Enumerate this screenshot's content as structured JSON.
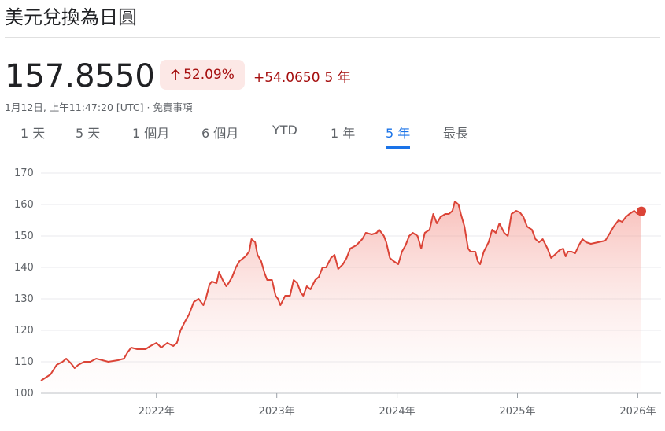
{
  "header": {
    "title": "美元兌換為日圓",
    "price": "157.8550",
    "percent_change": "52.09%",
    "change": "+54.0650",
    "period": "5 年",
    "timestamp": "1月12日, 上午11:47:20 [UTC]",
    "separator": "·",
    "disclaimer": "免責事項"
  },
  "tabs": {
    "items": [
      "1 天",
      "5 天",
      "1 個月",
      "6 個月",
      "YTD",
      "1 年",
      "5 年",
      "最長"
    ],
    "active": 6
  },
  "chart_data": {
    "type": "line",
    "color": "#db4437",
    "grid": true,
    "area": true,
    "x": [
      2021.04,
      2021.08,
      2021.12,
      2021.17,
      2021.22,
      2021.25,
      2021.29,
      2021.32,
      2021.35,
      2021.4,
      2021.45,
      2021.5,
      2021.55,
      2021.6,
      2021.68,
      2021.73,
      2021.76,
      2021.79,
      2021.84,
      2021.91,
      2021.95,
      2022.0,
      2022.04,
      2022.09,
      2022.14,
      2022.17,
      2022.2,
      2022.24,
      2022.27,
      2022.31,
      2022.35,
      2022.39,
      2022.41,
      2022.44,
      2022.46,
      2022.5,
      2022.52,
      2022.55,
      2022.58,
      2022.6,
      2022.63,
      2022.66,
      2022.69,
      2022.74,
      2022.77,
      2022.79,
      2022.82,
      2022.84,
      2022.87,
      2022.9,
      2022.92,
      2022.96,
      2022.99,
      2023.01,
      2023.03,
      2023.07,
      2023.11,
      2023.14,
      2023.17,
      2023.2,
      2023.22,
      2023.25,
      2023.28,
      2023.32,
      2023.35,
      2023.38,
      2023.41,
      2023.45,
      2023.48,
      2023.51,
      2023.55,
      2023.58,
      2023.61,
      2023.66,
      2023.71,
      2023.74,
      2023.79,
      2023.83,
      2023.85,
      2023.89,
      2023.91,
      2023.94,
      2023.97,
      2024.01,
      2024.04,
      2024.07,
      2024.1,
      2024.13,
      2024.17,
      2024.2,
      2024.23,
      2024.27,
      2024.3,
      2024.33,
      2024.36,
      2024.4,
      2024.43,
      2024.46,
      2024.48,
      2024.51,
      2024.53,
      2024.56,
      2024.59,
      2024.61,
      2024.65,
      2024.67,
      2024.69,
      2024.72,
      2024.76,
      2024.79,
      2024.82,
      2024.85,
      2024.89,
      2024.92,
      2024.95,
      2024.99,
      2025.02,
      2025.05,
      2025.08,
      2025.12,
      2025.15,
      2025.18,
      2025.21,
      2025.25,
      2025.28,
      2025.31,
      2025.35,
      2025.38,
      2025.4,
      2025.42,
      2025.45,
      2025.48,
      2025.51,
      2025.54,
      2025.57,
      2025.61,
      2025.67,
      2025.73,
      2025.77,
      2025.8,
      2025.84,
      2025.87,
      2025.9,
      2025.93,
      2025.97,
      2026.0,
      2026.03
    ],
    "values": [
      104,
      105,
      106,
      109,
      110,
      111,
      109.5,
      108,
      109,
      110,
      110,
      111,
      110.5,
      110,
      110.5,
      111,
      113,
      114.5,
      114,
      114,
      115,
      116,
      114.5,
      116,
      115,
      116,
      120,
      123,
      125,
      129,
      130,
      128,
      130,
      134.5,
      135.5,
      135,
      138.5,
      136,
      134,
      135,
      137,
      140,
      142,
      143.5,
      145,
      149,
      148,
      144,
      142,
      138,
      136,
      136,
      131,
      130,
      128,
      131,
      131,
      136,
      135,
      132,
      131,
      134,
      133,
      136,
      137,
      140,
      140,
      143,
      144,
      139.5,
      141,
      143,
      146,
      147,
      149,
      151,
      150.5,
      151,
      152,
      150,
      148,
      143,
      142,
      141,
      145,
      147,
      150,
      151,
      150,
      146,
      151,
      152,
      157,
      154,
      156,
      157,
      157,
      158,
      161,
      160,
      157,
      153,
      146,
      145,
      145,
      142,
      141,
      145,
      148,
      152,
      151,
      154,
      151,
      150,
      157,
      158,
      157.5,
      156,
      153,
      152,
      149,
      148,
      149,
      146,
      143,
      144,
      145.5,
      146,
      143.5,
      145,
      145,
      144.5,
      147,
      149,
      148,
      147.5,
      148,
      148.5,
      151,
      153,
      155,
      154.5,
      156,
      157,
      158,
      157,
      157.855
    ],
    "xlim": [
      2021.04,
      2026.03
    ],
    "xticks": [
      {
        "value": 2022,
        "label": "2022年"
      },
      {
        "value": 2023,
        "label": "2023年"
      },
      {
        "value": 2024,
        "label": "2024年"
      },
      {
        "value": 2025,
        "label": "2025年"
      },
      {
        "value": 2026,
        "label": "2026年"
      }
    ],
    "ylim": [
      100,
      170
    ],
    "yticks": [
      100,
      110,
      120,
      130,
      140,
      150,
      160,
      170
    ]
  }
}
